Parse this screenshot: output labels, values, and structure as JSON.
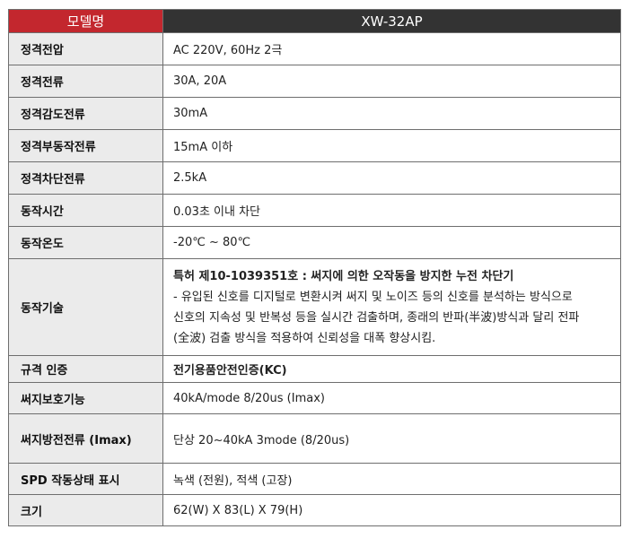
{
  "header": {
    "label": "모델명",
    "value": "XW-32AP"
  },
  "rows": [
    {
      "label": "정격전압",
      "value": "AC 220V, 60Hz 2극"
    },
    {
      "label": "정격전류",
      "value": "30A, 20A"
    },
    {
      "label": "정격감도전류",
      "value": "30mA"
    },
    {
      "label": "정격부동작전류",
      "value": "15mA 이하"
    },
    {
      "label": "정격차단전류",
      "value": "2.5kA"
    },
    {
      "label": "동작시간",
      "value": "0.03초 이내 차단"
    },
    {
      "label": "동작온도",
      "value": "-20℃ ~ 80℃"
    }
  ],
  "tech": {
    "label": "동작기술",
    "title": "특허 제10-1039351호 : 써지에 의한 오작동을 방지한 누전 차단기",
    "lines": [
      " - 유입된 신호를 디지털로 변환시켜 써지 및 노이즈 등의 신호를 분석하는 방식으로",
      "신호의 지속성 및 반복성 등을 실시간 검출하며, 종래의 반파(半波)방식과 달리 전파",
      "(全波) 검출 방식을 적용하여 신뢰성을 대폭 향상시킴."
    ]
  },
  "rows2": [
    {
      "label": "규격 인증",
      "value": "전기용품안전인증(KC)"
    },
    {
      "label": "써지보호기능",
      "value": "40kA/mode 8/20us (Imax)"
    },
    {
      "label": "써지방전전류 (Imax)",
      "value": "단상 20~40kA 3mode (8/20us)"
    },
    {
      "label": "SPD 작동상태 표시",
      "value": "녹색 (전원), 적색 (고장)"
    },
    {
      "label": "크기",
      "value": "62(W) X 83(L) X 79(H)"
    }
  ],
  "colors": {
    "header_label_bg": "#c3272e",
    "header_value_bg": "#333333",
    "label_bg": "#ebebeb",
    "border": "#6e6e6e"
  }
}
